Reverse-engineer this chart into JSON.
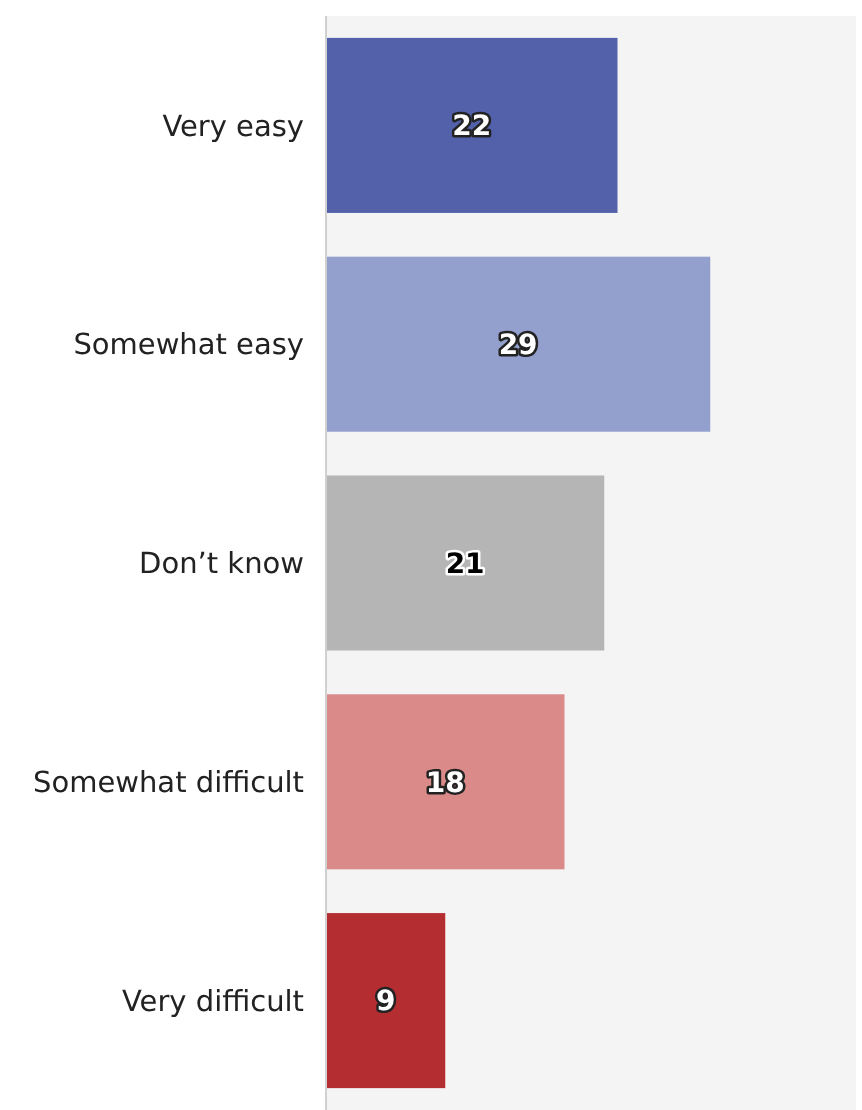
{
  "chart_data": {
    "type": "bar",
    "orientation": "horizontal",
    "categories": [
      "Very easy",
      "Somewhat easy",
      "Don’t know",
      "Somewhat difficult",
      "Very difficult"
    ],
    "values": [
      22,
      29,
      21,
      18,
      9
    ],
    "colors": [
      "#5261aa",
      "#939fcc",
      "#b5b5b5",
      "#da8a88",
      "#b32d31"
    ],
    "xlim": [
      0,
      40
    ],
    "tick_labels": "y",
    "data_labels": true
  }
}
